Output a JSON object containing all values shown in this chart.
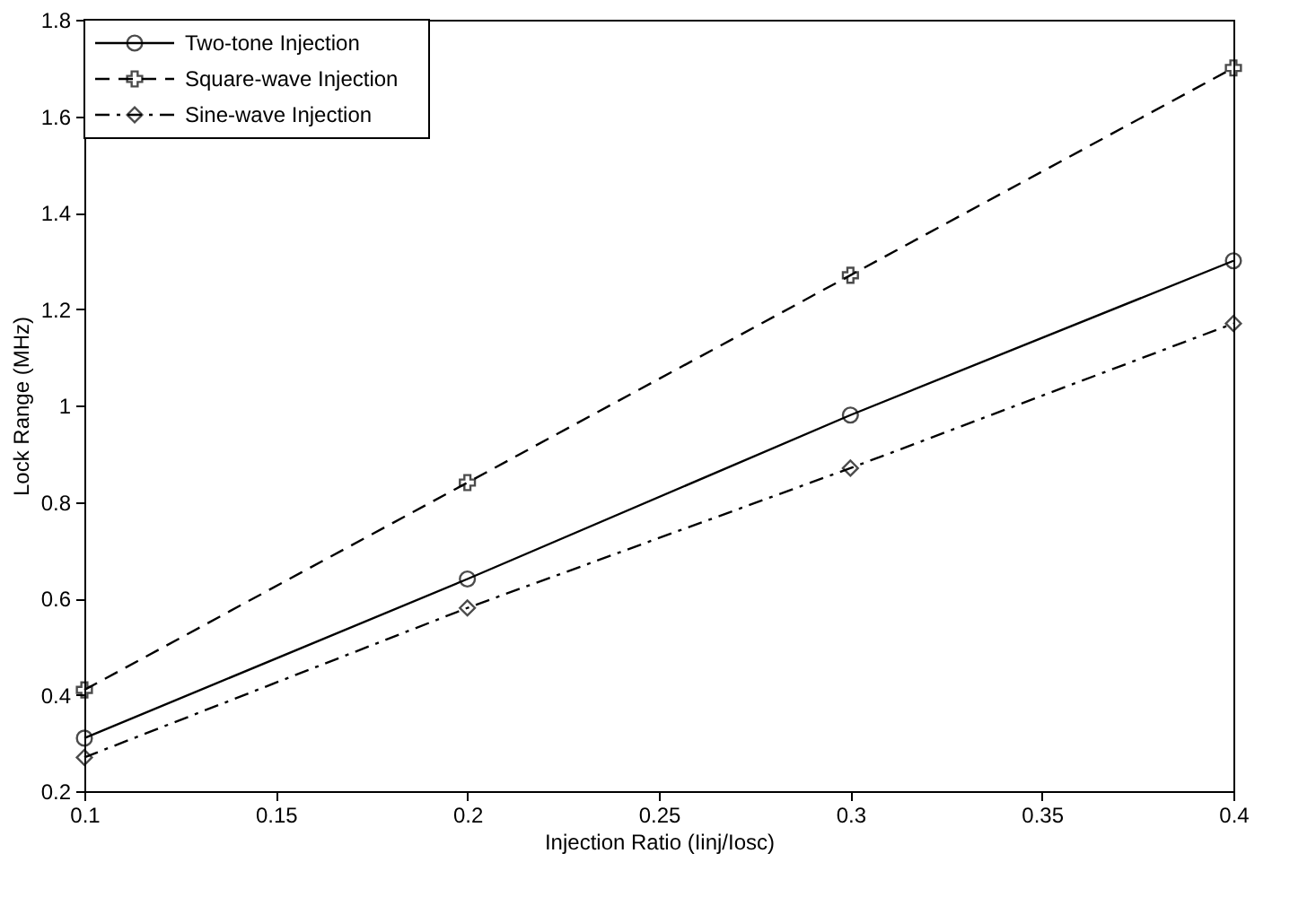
{
  "chart_data": {
    "type": "line",
    "xlabel": "Injection Ratio (Iinj/Iosc)",
    "ylabel": "Lock Range (MHz)",
    "x": [
      0.1,
      0.2,
      0.3,
      0.4
    ],
    "series": [
      {
        "name": "Two-tone Injection",
        "color": "#000000",
        "marker": "circle",
        "line_style": "solid",
        "values": [
          0.31,
          0.64,
          0.98,
          1.3
        ]
      },
      {
        "name": "Square-wave Injection",
        "color": "#000000",
        "marker": "cross",
        "line_style": "dashed",
        "values": [
          0.41,
          0.84,
          1.27,
          1.7
        ]
      },
      {
        "name": "Sine-wave Injection",
        "color": "#000000",
        "marker": "diamond",
        "line_style": "dashdot",
        "values": [
          0.27,
          0.58,
          0.87,
          1.17
        ]
      }
    ],
    "xlim": [
      0.1,
      0.4
    ],
    "xticks": [
      0.1,
      0.15,
      0.2,
      0.25,
      0.3,
      0.35,
      0.4
    ],
    "ylim": [
      0.2,
      1.8
    ],
    "yticks": [
      0.2,
      0.4,
      0.6,
      0.8,
      1,
      1.2,
      1.4,
      1.6,
      1.8
    ],
    "grid": false,
    "legend": "top left"
  }
}
